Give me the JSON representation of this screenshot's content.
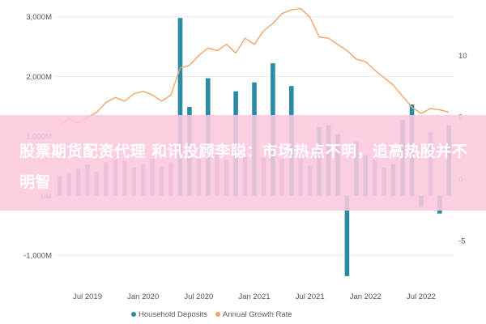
{
  "banner": {
    "text": "股票期货配资代理 和讯投顾李聪：市场热点不明，追高热股并不明智"
  },
  "chart_data": {
    "type": "bar",
    "x_tick_labels": [
      "Jul 2019",
      "Jan 2020",
      "Jul 2020",
      "Jan 2021",
      "Jul 2021",
      "Jan 2022",
      "Jul 2022"
    ],
    "left_axis": {
      "tick_labels": [
        "3,000M",
        "2,000M",
        "1,000M",
        "0M",
        "-1,000M"
      ],
      "range": [
        -1500,
        3200
      ],
      "ticks": [
        3000,
        2000,
        1000,
        0,
        -1000
      ]
    },
    "right_axis": {
      "tick_labels": [
        "10",
        "5",
        "0",
        "-5"
      ],
      "range": [
        -8.6,
        14.1
      ],
      "ticks": [
        10,
        5,
        0,
        -5
      ]
    },
    "series": [
      {
        "name": "Household Deposits",
        "color": "#8a8fd0",
        "highlight_color": "#2b8ba5",
        "values": [
          340,
          380,
          450,
          520,
          400,
          560,
          600,
          580,
          470,
          520,
          620,
          490,
          560,
          2980,
          1490,
          620,
          1970,
          690,
          600,
          1750,
          650,
          1900,
          640,
          2220,
          610,
          1840,
          620,
          500,
          1150,
          1180,
          1030,
          -1350,
          900,
          680,
          600,
          470,
          530,
          1270,
          1530,
          -190,
          1060,
          -300,
          1180
        ],
        "highlighted": [
          false,
          false,
          false,
          false,
          false,
          false,
          false,
          false,
          false,
          false,
          false,
          false,
          false,
          true,
          true,
          false,
          true,
          false,
          false,
          true,
          false,
          true,
          false,
          true,
          false,
          true,
          false,
          false,
          true,
          true,
          true,
          true,
          true,
          true,
          false,
          false,
          true,
          true,
          true,
          true,
          false,
          true,
          true
        ]
      },
      {
        "name": "Annual Growth Rate",
        "color": "#f0a46a",
        "values": [
          4.3,
          4.9,
          4.5,
          5.0,
          5.4,
          6.2,
          6.6,
          6.3,
          6.9,
          7.1,
          6.8,
          6.3,
          6.8,
          9.0,
          9.2,
          10.0,
          10.6,
          10.4,
          10.9,
          10.2,
          11.4,
          10.9,
          12.0,
          12.6,
          13.4,
          13.7,
          13.8,
          13.1,
          11.5,
          11.4,
          10.9,
          10.4,
          9.7,
          9.5,
          8.8,
          8.2,
          7.6,
          6.7,
          5.8,
          5.3,
          5.7,
          5.6,
          5.4
        ]
      }
    ]
  }
}
